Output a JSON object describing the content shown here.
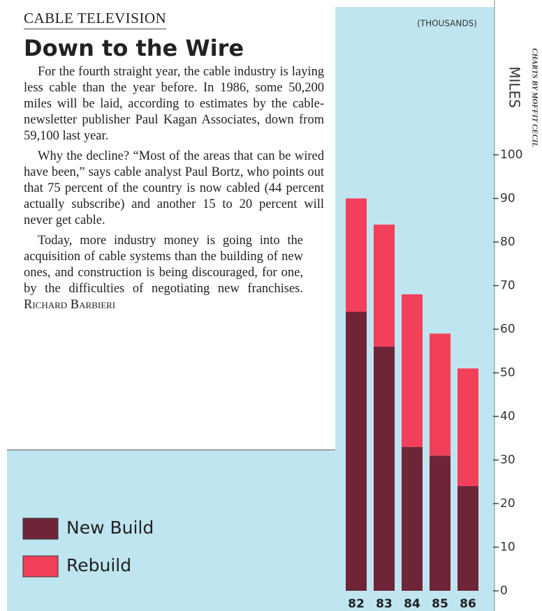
{
  "article": {
    "section": "CABLE TELEVISION",
    "headline": "Down to the Wire",
    "paragraphs": [
      "For the fourth straight year, the cable industry is laying less cable than the year before. In 1986, some 50,200 miles will be laid, according to estimates by the cable-newsletter publisher Paul Kagan Associates, down from 59,100 last year.",
      "Why the decline? “Most of the areas that can be wired have been,” says cable analyst Paul Bortz, who points out that 75 percent of the country is now cabled (44 percent actually subscribe) and another 15 to 20 percent will never get cable.",
      "Today, more industry money is going into the acquisition of cable systems than the building of new ones, and construction is being discouraged, for one, by the difficulties of negotiating new franchises."
    ],
    "byline": "Richard Barbieri"
  },
  "credit": "CHARTS BY MOFFIT CECIL",
  "chart_data": {
    "type": "bar",
    "stacked": true,
    "subtitle": "(THOUSANDS)",
    "y_label": "MILES",
    "categories": [
      "82",
      "83",
      "84",
      "85",
      "86"
    ],
    "series": [
      {
        "name": "New Build",
        "color": "#6e2538",
        "values": [
          64,
          56,
          33,
          31,
          24
        ]
      },
      {
        "name": "Rebuild",
        "color": "#f2405a",
        "values": [
          26,
          28,
          35,
          28,
          27
        ]
      }
    ],
    "ylim": [
      0,
      100
    ],
    "yticks": [
      0,
      10,
      20,
      30,
      40,
      50,
      60,
      70,
      80,
      90,
      100
    ]
  }
}
